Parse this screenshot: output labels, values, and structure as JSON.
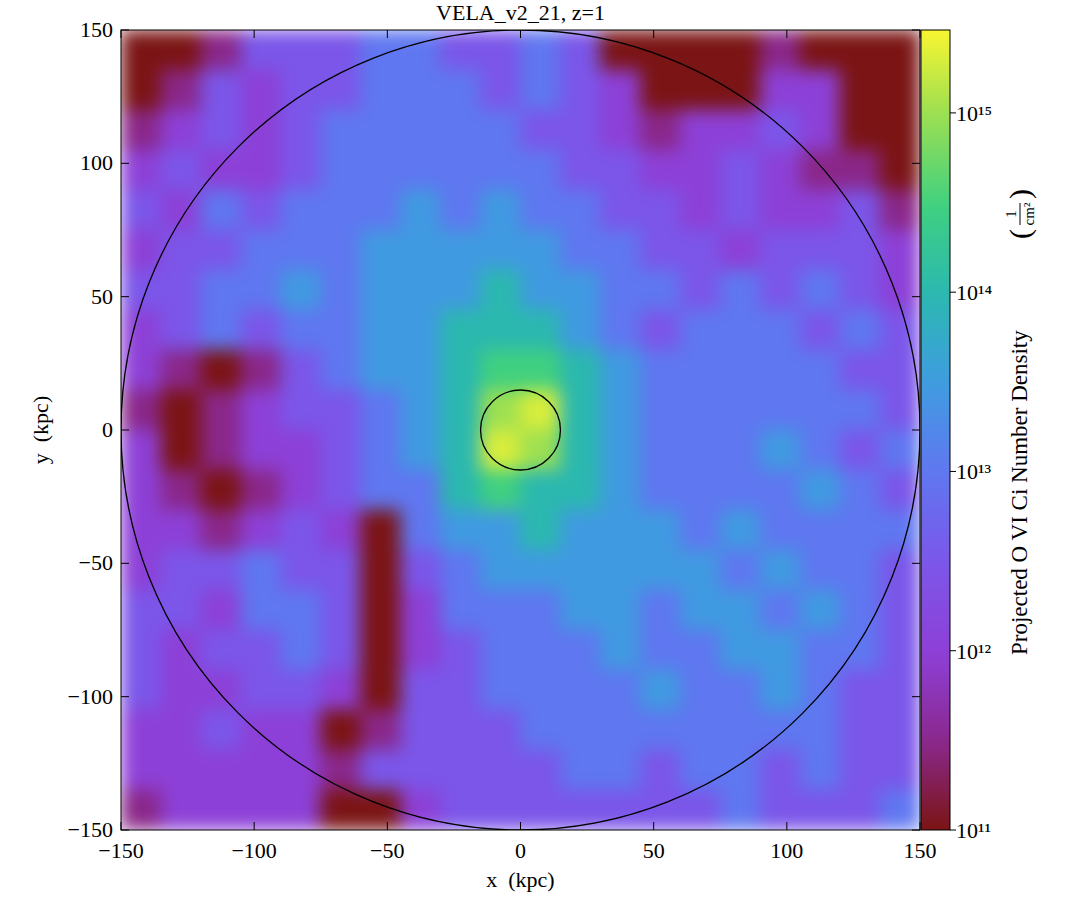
{
  "chart_data": {
    "type": "heatmap",
    "title": "VELA_v2_21, z=1",
    "x_label": "x  (kpc)",
    "y_label": "y  (kpc)",
    "xlim": [
      -150,
      150
    ],
    "ylim": [
      -150,
      150
    ],
    "xticks": [
      {
        "value": -150,
        "label": "−150"
      },
      {
        "value": -100,
        "label": "−100"
      },
      {
        "value": -50,
        "label": "−50"
      },
      0,
      50,
      100,
      150
    ],
    "yticks": [
      {
        "value": -150,
        "label": "−150"
      },
      {
        "value": -100,
        "label": "−100"
      },
      {
        "value": -50,
        "label": "−50"
      },
      0,
      50,
      100,
      150
    ],
    "log": true,
    "colorbar_label": "Projected O VI Ci Number Density",
    "colorbar_unit": {
      "open": "(",
      "numerator": "1",
      "denominator": "cm²",
      "close": ")"
    },
    "colorbar_range": [
      100000000000.0,
      2900000000000000.0
    ],
    "colorbar_ticks": [
      {
        "value": 100000000000.0,
        "label": "10¹¹"
      },
      {
        "value": 1000000000000.0,
        "label": "10¹²"
      },
      {
        "value": 10000000000000.0,
        "label": "10¹³"
      },
      {
        "value": 100000000000000.0,
        "label": "10¹⁴"
      },
      {
        "value": 1000000000000000.0,
        "label": "10¹⁵"
      }
    ],
    "circle_center": [
      0,
      0
    ],
    "circle_radii": [
      150,
      15
    ],
    "values": [
      [
        100000000000.0,
        100000000000.0,
        300000000000.0,
        3000000000000.0,
        3000000000000.0,
        3000000000000.0,
        10000000000000.0,
        10000000000000.0,
        3000000000000.0,
        3000000000000.0,
        10000000000000.0,
        3000000000000.0,
        100000000000.0,
        100000000000.0,
        100000000000.0,
        100000000000.0,
        300000000000.0,
        100000000000.0,
        100000000000.0,
        100000000000.0
      ],
      [
        100000000000.0,
        300000000000.0,
        3000000000000.0,
        1000000000000.0,
        3000000000000.0,
        3000000000000.0,
        10000000000000.0,
        10000000000000.0,
        10000000000000.0,
        3000000000000.0,
        10000000000000.0,
        3000000000000.0,
        1000000000000.0,
        100000000000.0,
        100000000000.0,
        100000000000.0,
        1000000000000.0,
        1000000000000.0,
        100000000000.0,
        100000000000.0
      ],
      [
        300000000000.0,
        1000000000000.0,
        3000000000000.0,
        1000000000000.0,
        3000000000000.0,
        10000000000000.0,
        10000000000000.0,
        10000000000000.0,
        10000000000000.0,
        10000000000000.0,
        3000000000000.0,
        3000000000000.0,
        1000000000000.0,
        300000000000.0,
        1000000000000.0,
        1000000000000.0,
        3000000000000.0,
        1000000000000.0,
        100000000000.0,
        100000000000.0
      ],
      [
        1000000000000.0,
        3000000000000.0,
        1000000000000.0,
        1000000000000.0,
        3000000000000.0,
        10000000000000.0,
        10000000000000.0,
        10000000000000.0,
        10000000000000.0,
        10000000000000.0,
        10000000000000.0,
        3000000000000.0,
        3000000000000.0,
        1000000000000.0,
        1000000000000.0,
        3000000000000.0,
        1000000000000.0,
        300000000000.0,
        300000000000.0,
        100000000000.0
      ],
      [
        3000000000000.0,
        1000000000000.0,
        10000000000000.0,
        3000000000000.0,
        10000000000000.0,
        10000000000000.0,
        10000000000000.0,
        30000000000000.0,
        10000000000000.0,
        30000000000000.0,
        10000000000000.0,
        10000000000000.0,
        3000000000000.0,
        3000000000000.0,
        1000000000000.0,
        3000000000000.0,
        1000000000000.0,
        1000000000000.0,
        3000000000000.0,
        300000000000.0
      ],
      [
        1000000000000.0,
        3000000000000.0,
        3000000000000.0,
        10000000000000.0,
        10000000000000.0,
        10000000000000.0,
        30000000000000.0,
        30000000000000.0,
        30000000000000.0,
        30000000000000.0,
        30000000000000.0,
        10000000000000.0,
        10000000000000.0,
        3000000000000.0,
        3000000000000.0,
        1000000000000.0,
        3000000000000.0,
        3000000000000.0,
        3000000000000.0,
        1000000000000.0
      ],
      [
        3000000000000.0,
        3000000000000.0,
        10000000000000.0,
        10000000000000.0,
        30000000000000.0,
        10000000000000.0,
        30000000000000.0,
        30000000000000.0,
        30000000000000.0,
        100000000000000.0,
        30000000000000.0,
        30000000000000.0,
        10000000000000.0,
        10000000000000.0,
        3000000000000.0,
        10000000000000.0,
        3000000000000.0,
        10000000000000.0,
        3000000000000.0,
        1000000000000.0
      ],
      [
        1000000000000.0,
        3000000000000.0,
        10000000000000.0,
        3000000000000.0,
        10000000000000.0,
        10000000000000.0,
        30000000000000.0,
        30000000000000.0,
        100000000000000.0,
        100000000000000.0,
        100000000000000.0,
        30000000000000.0,
        10000000000000.0,
        3000000000000.0,
        10000000000000.0,
        10000000000000.0,
        10000000000000.0,
        3000000000000.0,
        10000000000000.0,
        3000000000000.0
      ],
      [
        1000000000000.0,
        300000000000.0,
        100000000000.0,
        300000000000.0,
        3000000000000.0,
        10000000000000.0,
        30000000000000.0,
        30000000000000.0,
        100000000000000.0,
        300000000000000.0,
        300000000000000.0,
        100000000000000.0,
        30000000000000.0,
        10000000000000.0,
        10000000000000.0,
        10000000000000.0,
        10000000000000.0,
        10000000000000.0,
        3000000000000.0,
        3000000000000.0
      ],
      [
        300000000000.0,
        100000000000.0,
        300000000000.0,
        1000000000000.0,
        3000000000000.0,
        3000000000000.0,
        10000000000000.0,
        30000000000000.0,
        100000000000000.0,
        1000000000000000.0,
        2000000000000000.0,
        100000000000000.0,
        30000000000000.0,
        10000000000000.0,
        10000000000000.0,
        10000000000000.0,
        10000000000000.0,
        10000000000000.0,
        10000000000000.0,
        3000000000000.0
      ],
      [
        1000000000000.0,
        100000000000.0,
        300000000000.0,
        1000000000000.0,
        1000000000000.0,
        3000000000000.0,
        10000000000000.0,
        30000000000000.0,
        100000000000000.0,
        2000000000000000.0,
        1000000000000000.0,
        100000000000000.0,
        30000000000000.0,
        10000000000000.0,
        10000000000000.0,
        10000000000000.0,
        30000000000000.0,
        10000000000000.0,
        3000000000000.0,
        10000000000000.0
      ],
      [
        1000000000000.0,
        300000000000.0,
        100000000000.0,
        300000000000.0,
        1000000000000.0,
        3000000000000.0,
        10000000000000.0,
        10000000000000.0,
        100000000000000.0,
        300000000000000.0,
        100000000000000.0,
        100000000000000.0,
        30000000000000.0,
        10000000000000.0,
        10000000000000.0,
        10000000000000.0,
        10000000000000.0,
        30000000000000.0,
        10000000000000.0,
        3000000000000.0
      ],
      [
        1000000000000.0,
        1000000000000.0,
        300000000000.0,
        1000000000000.0,
        3000000000000.0,
        1000000000000.0,
        100000000000.0,
        10000000000000.0,
        30000000000000.0,
        30000000000000.0,
        100000000000000.0,
        30000000000000.0,
        30000000000000.0,
        30000000000000.0,
        10000000000000.0,
        30000000000000.0,
        10000000000000.0,
        10000000000000.0,
        10000000000000.0,
        10000000000000.0
      ],
      [
        1000000000000.0,
        3000000000000.0,
        3000000000000.0,
        10000000000000.0,
        3000000000000.0,
        3000000000000.0,
        100000000000.0,
        3000000000000.0,
        10000000000000.0,
        30000000000000.0,
        30000000000000.0,
        30000000000000.0,
        30000000000000.0,
        30000000000000.0,
        30000000000000.0,
        10000000000000.0,
        30000000000000.0,
        10000000000000.0,
        10000000000000.0,
        3000000000000.0
      ],
      [
        3000000000000.0,
        3000000000000.0,
        1000000000000.0,
        10000000000000.0,
        10000000000000.0,
        3000000000000.0,
        100000000000.0,
        1000000000000.0,
        10000000000000.0,
        10000000000000.0,
        10000000000000.0,
        30000000000000.0,
        30000000000000.0,
        10000000000000.0,
        30000000000000.0,
        30000000000000.0,
        10000000000000.0,
        30000000000000.0,
        10000000000000.0,
        3000000000000.0
      ],
      [
        3000000000000.0,
        1000000000000.0,
        3000000000000.0,
        3000000000000.0,
        10000000000000.0,
        3000000000000.0,
        100000000000.0,
        1000000000000.0,
        3000000000000.0,
        10000000000000.0,
        10000000000000.0,
        10000000000000.0,
        30000000000000.0,
        10000000000000.0,
        10000000000000.0,
        30000000000000.0,
        30000000000000.0,
        10000000000000.0,
        10000000000000.0,
        3000000000000.0
      ],
      [
        3000000000000.0,
        1000000000000.0,
        1000000000000.0,
        3000000000000.0,
        3000000000000.0,
        1000000000000.0,
        100000000000.0,
        3000000000000.0,
        3000000000000.0,
        10000000000000.0,
        10000000000000.0,
        10000000000000.0,
        10000000000000.0,
        30000000000000.0,
        10000000000000.0,
        10000000000000.0,
        30000000000000.0,
        10000000000000.0,
        3000000000000.0,
        3000000000000.0
      ],
      [
        1000000000000.0,
        1000000000000.0,
        3000000000000.0,
        1000000000000.0,
        1000000000000.0,
        100000000000.0,
        300000000000.0,
        3000000000000.0,
        3000000000000.0,
        3000000000000.0,
        10000000000000.0,
        10000000000000.0,
        10000000000000.0,
        10000000000000.0,
        10000000000000.0,
        10000000000000.0,
        10000000000000.0,
        10000000000000.0,
        3000000000000.0,
        3000000000000.0
      ],
      [
        1000000000000.0,
        1000000000000.0,
        1000000000000.0,
        1000000000000.0,
        1000000000000.0,
        300000000000.0,
        3000000000000.0,
        3000000000000.0,
        3000000000000.0,
        3000000000000.0,
        3000000000000.0,
        10000000000000.0,
        10000000000000.0,
        3000000000000.0,
        10000000000000.0,
        10000000000000.0,
        3000000000000.0,
        10000000000000.0,
        3000000000000.0,
        3000000000000.0
      ],
      [
        300000000000.0,
        1000000000000.0,
        1000000000000.0,
        1000000000000.0,
        1000000000000.0,
        100000000000.0,
        100000000000.0,
        1000000000000.0,
        3000000000000.0,
        3000000000000.0,
        3000000000000.0,
        3000000000000.0,
        3000000000000.0,
        3000000000000.0,
        3000000000000.0,
        10000000000000.0,
        3000000000000.0,
        3000000000000.0,
        3000000000000.0,
        10000000000000.0
      ]
    ]
  }
}
